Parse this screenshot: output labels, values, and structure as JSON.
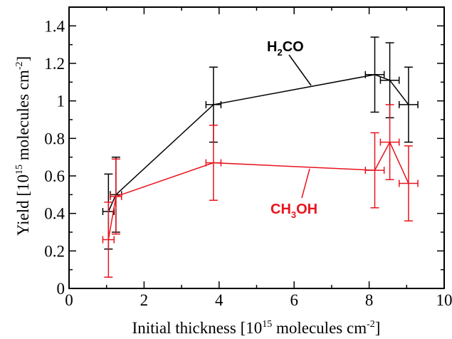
{
  "chart_data": {
    "type": "line",
    "xlabel": {
      "main": "Initial thickness [10",
      "exp": "15",
      "mid": " molecules cm",
      "exp2": "-2",
      "end": "]"
    },
    "ylabel": {
      "main": "Yield [10",
      "exp": "15",
      "mid": " molecules cm",
      "exp2": "-2",
      "end": "]"
    },
    "xlim": [
      0,
      10
    ],
    "ylim": [
      0,
      1.5
    ],
    "x_ticks": [
      0,
      2,
      4,
      6,
      8,
      10
    ],
    "y_ticks": [
      0,
      0.2,
      0.4,
      0.6,
      0.8,
      1,
      1.2,
      1.4
    ],
    "x_tick_labels": [
      "0",
      "2",
      "4",
      "6",
      "8",
      "10"
    ],
    "y_tick_labels": [
      "0",
      "0.2",
      "0.4",
      "0.6",
      "0.8",
      "1",
      "1.2",
      "1.4"
    ],
    "grid": false,
    "series": [
      {
        "name": "H2CO",
        "label": {
          "a": "H",
          "sub": "2",
          "b": "CO"
        },
        "color": "#000000",
        "points": [
          {
            "x": 1.05,
            "y": 0.41,
            "xerr": 0.15,
            "yerr": 0.2
          },
          {
            "x": 1.25,
            "y": 0.5,
            "xerr": 0.15,
            "yerr": 0.2
          },
          {
            "x": 3.85,
            "y": 0.98,
            "xerr": 0.2,
            "yerr": 0.2
          },
          {
            "x": 8.15,
            "y": 1.14,
            "xerr": 0.25,
            "yerr": 0.2
          },
          {
            "x": 8.55,
            "y": 1.11,
            "xerr": 0.25,
            "yerr": 0.2
          },
          {
            "x": 9.05,
            "y": 0.98,
            "xerr": 0.25,
            "yerr": 0.2
          }
        ]
      },
      {
        "name": "CH3OH",
        "label": {
          "a": "CH",
          "sub": "3",
          "b": "OH"
        },
        "color": "#e8141e",
        "points": [
          {
            "x": 1.05,
            "y": 0.26,
            "xerr": 0.15,
            "yerr": 0.2
          },
          {
            "x": 1.25,
            "y": 0.49,
            "xerr": 0.15,
            "yerr": 0.2
          },
          {
            "x": 3.85,
            "y": 0.67,
            "xerr": 0.2,
            "yerr": 0.2
          },
          {
            "x": 8.15,
            "y": 0.63,
            "xerr": 0.25,
            "yerr": 0.2
          },
          {
            "x": 8.55,
            "y": 0.78,
            "xerr": 0.25,
            "yerr": 0.2
          },
          {
            "x": 9.05,
            "y": 0.56,
            "xerr": 0.25,
            "yerr": 0.2
          }
        ]
      }
    ]
  }
}
